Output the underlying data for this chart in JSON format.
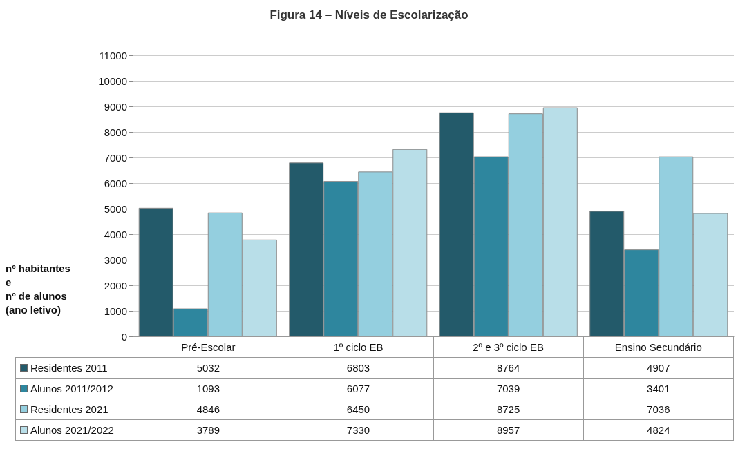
{
  "chart_data": {
    "type": "bar",
    "title": "Figura 14 – Níveis de Escolarização",
    "ylabel": "nº habitantes\ne\nnº de alunos\n(ano letivo)",
    "categories": [
      "Pré-Escolar",
      "1º ciclo EB",
      "2º e 3º ciclo EB",
      "Ensino Secundário"
    ],
    "series": [
      {
        "name": "Residentes 2011",
        "color": "#235a6a",
        "values": [
          5032,
          6803,
          8764,
          4907
        ]
      },
      {
        "name": "Alunos 2011/2012",
        "color": "#2e869e",
        "values": [
          1093,
          6077,
          7039,
          3401
        ]
      },
      {
        "name": "Residentes 2021",
        "color": "#94cfdf",
        "values": [
          4846,
          6450,
          8725,
          7036
        ]
      },
      {
        "name": "Alunos 2021/2022",
        "color": "#b8dee8",
        "values": [
          3789,
          7330,
          8957,
          4824
        ]
      }
    ],
    "ylim": [
      0,
      11000
    ],
    "yticks": [
      0,
      1000,
      2000,
      3000,
      4000,
      5000,
      6000,
      7000,
      8000,
      9000,
      10000,
      11000
    ],
    "grid": "y",
    "legend": "bottom",
    "data_labels": true
  }
}
